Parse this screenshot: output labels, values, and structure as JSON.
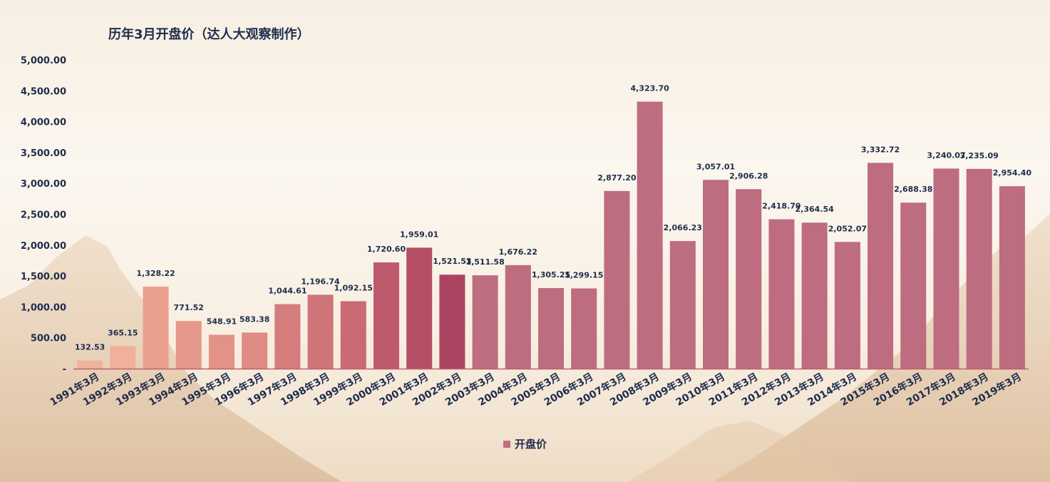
{
  "chart_data": {
    "type": "bar",
    "title": "历年3月开盘价（达人大观察制作）",
    "categories": [
      "1991年3月",
      "1992年3月",
      "1993年3月",
      "1994年3月",
      "1995年3月",
      "1996年3月",
      "1997年3月",
      "1998年3月",
      "1999年3月",
      "2000年3月",
      "2001年3月",
      "2002年3月",
      "2003年3月",
      "2004年3月",
      "2005年3月",
      "2006年3月",
      "2007年3月",
      "2008年3月",
      "2009年3月",
      "2010年3月",
      "2011年3月",
      "2012年3月",
      "2013年3月",
      "2014年3月",
      "2015年3月",
      "2016年3月",
      "2017年3月",
      "2018年3月",
      "2019年3月"
    ],
    "series": [
      {
        "name": "开盘价",
        "values": [
          132.53,
          365.15,
          1328.22,
          771.52,
          548.91,
          583.38,
          1044.61,
          1196.74,
          1092.15,
          1720.6,
          1959.01,
          1521.53,
          1511.58,
          1676.22,
          1305.25,
          1299.15,
          2877.2,
          4323.7,
          2066.23,
          3057.01,
          2906.28,
          2418.79,
          2364.54,
          2052.07,
          3332.72,
          2688.38,
          3240.07,
          3235.09,
          2954.4
        ],
        "data_labels": [
          "132.53",
          "365.15",
          "1,328.22",
          "771.52",
          "548.91",
          "583.38",
          "1,044.61",
          "1,196.74",
          "1,092.15",
          "1,720.60",
          "1,959.01",
          "1,521.53",
          "1,511.58",
          "1,676.22",
          "1,305.25",
          "1,299.15",
          "2,877.20",
          "4,323.70",
          "2,066.23",
          "3,057.01",
          "2,906.28",
          "2,418.79",
          "2,364.54",
          "2,052.07",
          "3,332.72",
          "2,688.38",
          "3,240.07",
          "3,235.09",
          "2,954.40"
        ],
        "colors": [
          "#f0b49c",
          "#f0b09a",
          "#eaa08d",
          "#e6998a",
          "#e29286",
          "#dd8b83",
          "#d57c7c",
          "#cf7479",
          "#c96a74",
          "#bd5a6c",
          "#b54f65",
          "#ab4460",
          "#bd6d7f",
          "#bd6d7f",
          "#bd6d7f",
          "#bd6d7f",
          "#bd6d7f",
          "#bd6d7f",
          "#bd6d7f",
          "#bd6d7f",
          "#bd6d7f",
          "#bd6d7f",
          "#bd6d7f",
          "#bd6d7f",
          "#bd6d7f",
          "#bd6d7f",
          "#bd6d7f",
          "#bd6d7f",
          "#bd6d7f"
        ]
      }
    ],
    "ylim": [
      0,
      5000
    ],
    "yticks": [
      0,
      500,
      1000,
      1500,
      2000,
      2500,
      3000,
      3500,
      4000,
      4500,
      5000
    ],
    "ytick_labels": [
      "-",
      "500.00",
      "1,000.00",
      "1,500.00",
      "2,000.00",
      "2,500.00",
      "3,000.00",
      "3,500.00",
      "4,000.00",
      "4,500.00",
      "5,000.00"
    ],
    "grid": false,
    "legend": {
      "position": "bottom",
      "label": "开盘价",
      "color": "#c27080"
    },
    "xlabel": "",
    "ylabel": ""
  }
}
